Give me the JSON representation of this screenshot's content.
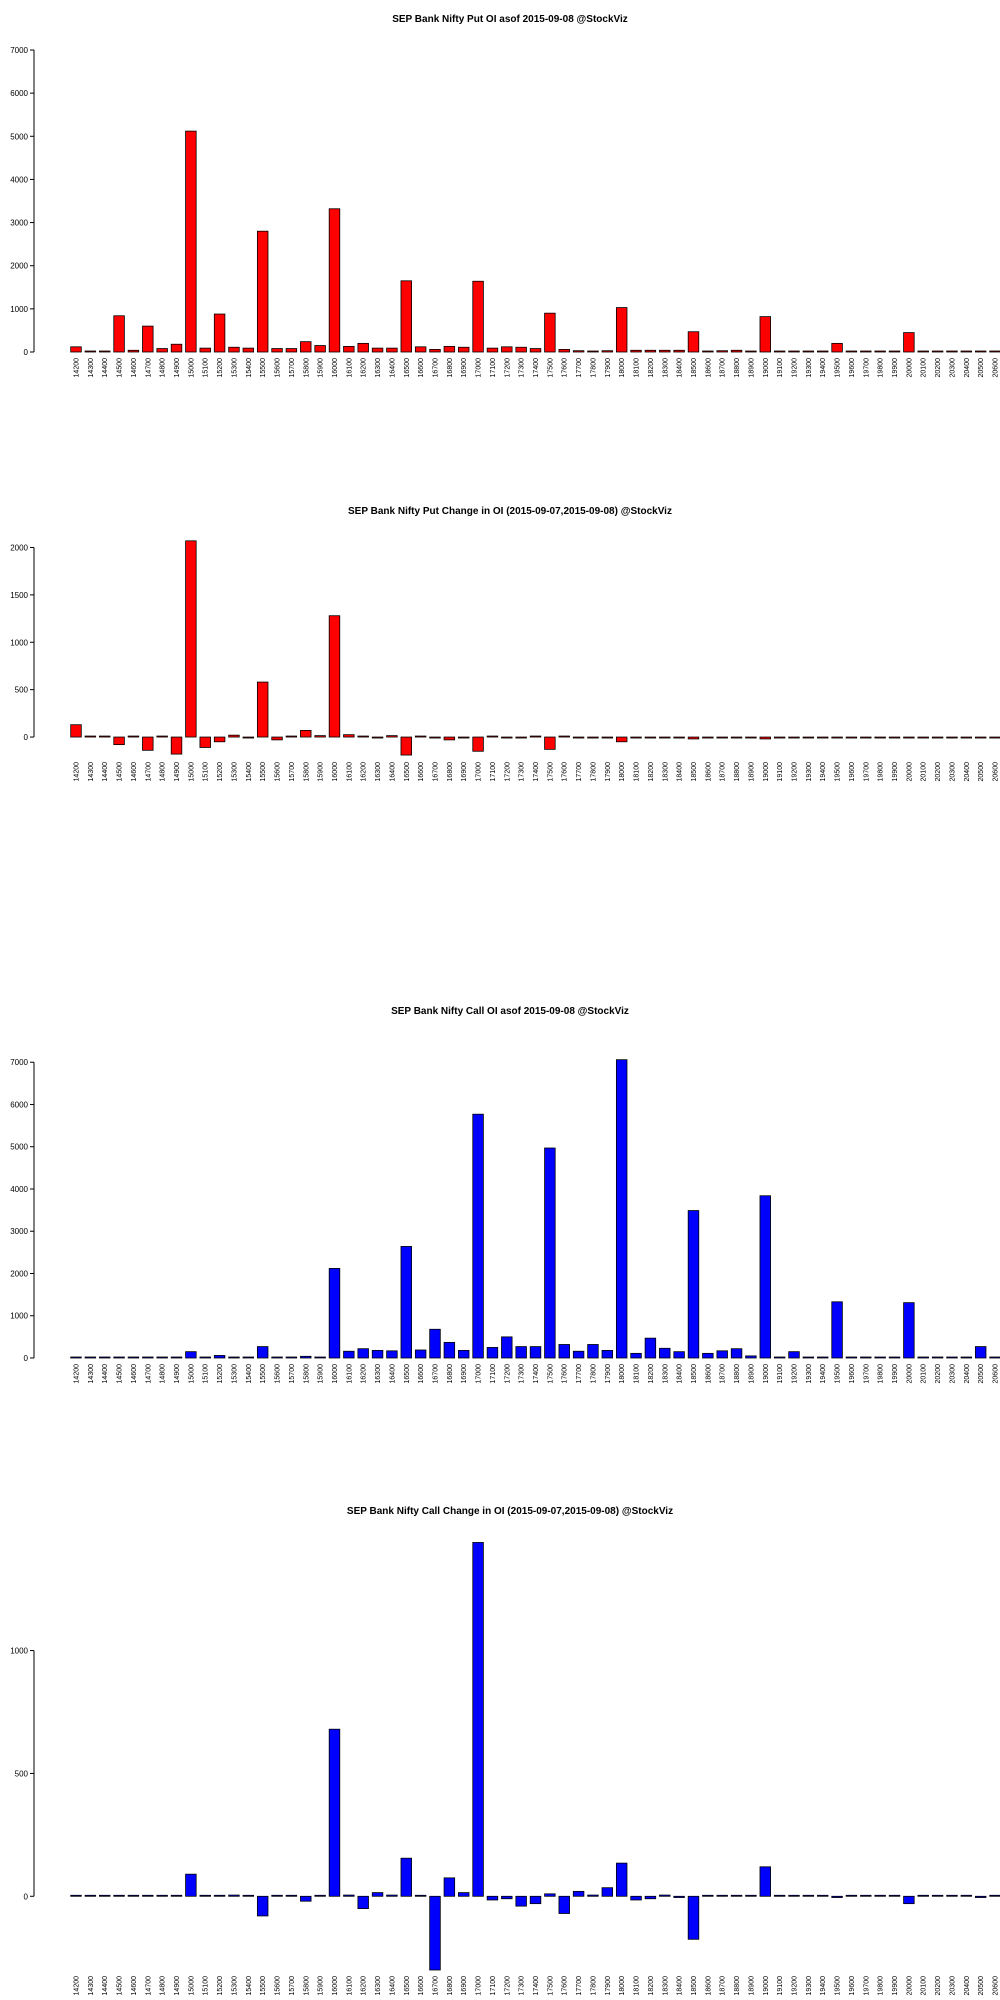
{
  "chart_data": [
    {
      "type": "bar",
      "title": "SEP Bank Nifty Put OI asof 2015-09-08 @StockViz",
      "color": "#ff0000",
      "categories": [
        "14200",
        "14300",
        "14400",
        "14500",
        "14600",
        "14700",
        "14800",
        "14900",
        "15000",
        "15100",
        "15200",
        "15300",
        "15400",
        "15500",
        "15600",
        "15700",
        "15800",
        "15900",
        "16000",
        "16100",
        "16200",
        "16300",
        "16400",
        "16500",
        "16600",
        "16700",
        "16800",
        "16900",
        "17000",
        "17100",
        "17200",
        "17300",
        "17400",
        "17500",
        "17600",
        "17700",
        "17800",
        "17900",
        "18000",
        "18100",
        "18200",
        "18300",
        "18400",
        "18500",
        "18600",
        "18700",
        "18800",
        "18900",
        "19000",
        "19100",
        "19200",
        "19300",
        "19400",
        "19500",
        "19600",
        "19700",
        "19800",
        "19900",
        "20000",
        "20100",
        "20200",
        "20300",
        "20400",
        "20500",
        "20600"
      ],
      "values": [
        120,
        20,
        10,
        840,
        40,
        600,
        80,
        180,
        5120,
        90,
        880,
        110,
        90,
        2800,
        80,
        80,
        240,
        150,
        3320,
        130,
        200,
        90,
        90,
        1650,
        120,
        60,
        130,
        110,
        1640,
        90,
        120,
        110,
        80,
        900,
        60,
        30,
        20,
        30,
        1030,
        40,
        40,
        40,
        40,
        470,
        20,
        30,
        40,
        10,
        820,
        10,
        10,
        10,
        10,
        200,
        10,
        10,
        10,
        10,
        450,
        10,
        10,
        10,
        10,
        20,
        10
      ],
      "ylim": [
        0,
        7000
      ],
      "yticks": [
        0,
        1000,
        2000,
        3000,
        4000,
        5000,
        6000,
        7000
      ]
    },
    {
      "type": "bar",
      "title": "SEP Bank Nifty Put Change in OI (2015-09-07,2015-09-08) @StockViz",
      "color": "#ff0000",
      "categories": [
        "14200",
        "14300",
        "14400",
        "14500",
        "14600",
        "14700",
        "14800",
        "14900",
        "15000",
        "15100",
        "15200",
        "15300",
        "15400",
        "15500",
        "15600",
        "15700",
        "15800",
        "15900",
        "16000",
        "16100",
        "16200",
        "16300",
        "16400",
        "16500",
        "16600",
        "16700",
        "16800",
        "16900",
        "17000",
        "17100",
        "17200",
        "17300",
        "17400",
        "17500",
        "17600",
        "17700",
        "17800",
        "17900",
        "18000",
        "18100",
        "18200",
        "18300",
        "18400",
        "18500",
        "18600",
        "18700",
        "18800",
        "18900",
        "19000",
        "19100",
        "19200",
        "19300",
        "19400",
        "19500",
        "19600",
        "19700",
        "19800",
        "19900",
        "20000",
        "20100",
        "20200",
        "20300",
        "20400",
        "20500",
        "20600"
      ],
      "values": [
        130,
        10,
        5,
        -80,
        5,
        -140,
        5,
        -180,
        2070,
        -110,
        -50,
        20,
        -5,
        580,
        -30,
        0,
        70,
        15,
        1280,
        25,
        0,
        -5,
        15,
        -190,
        0,
        -10,
        -30,
        -10,
        -150,
        0,
        -10,
        -5,
        0,
        -130,
        0,
        -5,
        -10,
        -10,
        -50,
        -5,
        -5,
        -5,
        -5,
        -20,
        -5,
        -5,
        -5,
        -5,
        -20,
        -5,
        -5,
        -5,
        -5,
        -5,
        -5,
        -5,
        -5,
        -5,
        -10,
        -5,
        -5,
        -5,
        -5,
        -5,
        -5
      ],
      "ylim": [
        -200,
        2100
      ],
      "yticks": [
        0,
        500,
        1000,
        1500,
        2000
      ]
    },
    {
      "type": "bar",
      "title": "SEP Bank Nifty Call OI asof 2015-09-08 @StockViz",
      "color": "#0000ff",
      "categories": [
        "14200",
        "14300",
        "14400",
        "14500",
        "14600",
        "14700",
        "14800",
        "14900",
        "15000",
        "15100",
        "15200",
        "15300",
        "15400",
        "15500",
        "15600",
        "15700",
        "15800",
        "15900",
        "16000",
        "16100",
        "16200",
        "16300",
        "16400",
        "16500",
        "16600",
        "16700",
        "16800",
        "16900",
        "17000",
        "17100",
        "17200",
        "17300",
        "17400",
        "17500",
        "17600",
        "17700",
        "17800",
        "17900",
        "18000",
        "18100",
        "18200",
        "18300",
        "18400",
        "18500",
        "18600",
        "18700",
        "18800",
        "18900",
        "19000",
        "19100",
        "19200",
        "19300",
        "19400",
        "19500",
        "19600",
        "19700",
        "19800",
        "19900",
        "20000",
        "20100",
        "20200",
        "20300",
        "20400",
        "20500",
        "20600"
      ],
      "values": [
        0,
        0,
        0,
        0,
        0,
        0,
        0,
        0,
        150,
        0,
        60,
        0,
        0,
        270,
        0,
        0,
        40,
        0,
        2120,
        160,
        220,
        180,
        170,
        2640,
        190,
        680,
        370,
        180,
        5770,
        250,
        500,
        270,
        270,
        4970,
        320,
        160,
        320,
        180,
        7060,
        110,
        470,
        230,
        150,
        3490,
        110,
        170,
        220,
        50,
        3840,
        0,
        150,
        0,
        0,
        1330,
        0,
        0,
        0,
        0,
        1310,
        0,
        0,
        0,
        0,
        270,
        0
      ],
      "ylim": [
        0,
        7100
      ],
      "yticks": [
        0,
        1000,
        2000,
        3000,
        4000,
        5000,
        6000,
        7000
      ]
    },
    {
      "type": "bar",
      "title": "SEP Bank Nifty Call Change in OI (2015-09-07,2015-09-08) @StockViz",
      "color": "#0000ff",
      "categories": [
        "14200",
        "14300",
        "14400",
        "14500",
        "14600",
        "14700",
        "14800",
        "14900",
        "15000",
        "15100",
        "15200",
        "15300",
        "15400",
        "15500",
        "15600",
        "15700",
        "15800",
        "15900",
        "16000",
        "16100",
        "16200",
        "16300",
        "16400",
        "16500",
        "16600",
        "16700",
        "16800",
        "16900",
        "17000",
        "17100",
        "17200",
        "17300",
        "17400",
        "17500",
        "17600",
        "17700",
        "17800",
        "17900",
        "18000",
        "18100",
        "18200",
        "18300",
        "18400",
        "18500",
        "18600",
        "18700",
        "18800",
        "18900",
        "19000",
        "19100",
        "19200",
        "19300",
        "19400",
        "19500",
        "19600",
        "19700",
        "19800",
        "19900",
        "20000",
        "20100",
        "20200",
        "20300",
        "20400",
        "20500",
        "20600"
      ],
      "values": [
        0,
        0,
        0,
        0,
        0,
        0,
        0,
        0,
        90,
        0,
        0,
        5,
        0,
        -80,
        0,
        0,
        -20,
        0,
        680,
        5,
        -50,
        15,
        5,
        155,
        0,
        -300,
        75,
        15,
        1440,
        -15,
        -10,
        -40,
        -30,
        10,
        -70,
        20,
        5,
        35,
        135,
        -15,
        -10,
        5,
        -5,
        -175,
        0,
        0,
        0,
        0,
        120,
        0,
        0,
        0,
        0,
        -5,
        0,
        0,
        0,
        0,
        -30,
        0,
        0,
        0,
        0,
        -5,
        0
      ],
      "ylim": [
        -300,
        1450
      ],
      "yticks": [
        0,
        500,
        1000
      ]
    }
  ]
}
